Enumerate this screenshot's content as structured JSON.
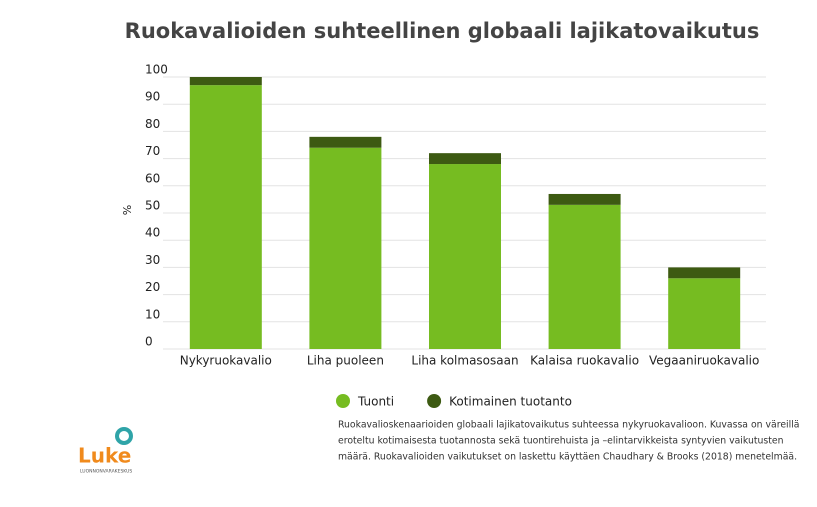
{
  "chart_data": {
    "type": "stacked-bar",
    "title": "Ruokavalioiden suhteellinen globaali lajikatovaikutus",
    "y_label": "%",
    "categories": [
      "Nykyruokavalio",
      "Liha puoleen",
      "Liha kolmasosaan",
      "Kalaisa ruokavalio",
      "Vegaaniruokavalio"
    ],
    "series": [
      {
        "name": "Tuonti",
        "color": "#76bc21",
        "values": [
          97,
          74,
          68,
          53,
          26
        ]
      },
      {
        "name": "Kotimainen tuotanto",
        "color": "#3d5a12",
        "values": [
          3,
          4,
          4,
          4,
          4
        ]
      }
    ],
    "ylim": [
      0,
      100
    ],
    "yticks": [
      0,
      10,
      20,
      30,
      40,
      50,
      60,
      70,
      80,
      90,
      100
    ],
    "grid": true,
    "caption": [
      "Ruokavalioskenaarioiden globaali lajikatovaikutus suhteessa nykyruokavalioon. Kuvassa on väreillä",
      "eroteltu kotimaisesta tuotannosta sekä tuontirehuista ja –elintarvikkeista syntyvien vaikutusten",
      "määrä. Ruokavalioiden vaikutukset on laskettu käyttäen Chaudhary & Brooks (2018) menetelmää."
    ]
  },
  "logo": {
    "name": "Luke",
    "subtitle": "LUONNONVARAKESKUS"
  }
}
